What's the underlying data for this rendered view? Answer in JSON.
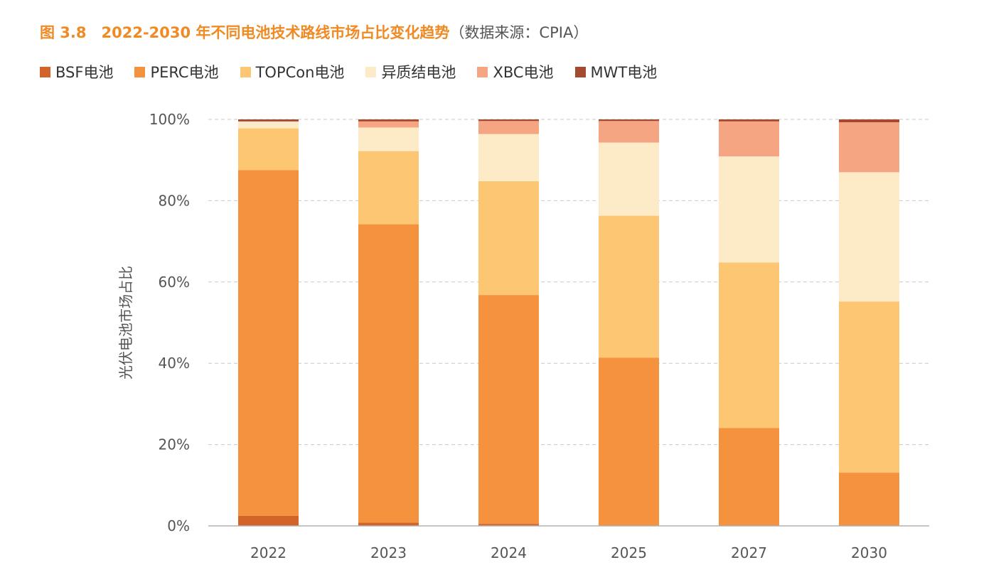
{
  "figure": {
    "title_main": "图 3.8　2022-2030 年不同电池技术路线市场占比变化趋势",
    "title_source": "（数据来源：CPIA）"
  },
  "chart_data": {
    "type": "bar",
    "stacked": true,
    "title": "图 3.8　2022-2030 年不同电池技术路线市场占比变化趋势（数据来源：CPIA）",
    "xlabel": "",
    "ylabel": "光伏电池市场占比",
    "ylim": [
      0,
      100
    ],
    "yticks": [
      "0%",
      "20%",
      "40%",
      "60%",
      "80%",
      "100%"
    ],
    "grid": true,
    "legend_position": "top",
    "categories": [
      "2022",
      "2023",
      "2024",
      "2025",
      "2027",
      "2030"
    ],
    "series": [
      {
        "name": "BSF电池",
        "color": "#d2642a",
        "values": [
          2.5,
          0.8,
          0.5,
          0.0,
          0.0,
          0.0
        ]
      },
      {
        "name": "PERC电池",
        "color": "#f5923e",
        "values": [
          85.0,
          73.4,
          56.3,
          41.4,
          24.1,
          13.1
        ]
      },
      {
        "name": "TOPCon电池",
        "color": "#fdc672",
        "values": [
          10.3,
          18.0,
          28.0,
          34.9,
          40.7,
          42.1
        ]
      },
      {
        "name": "异质结电池",
        "color": "#fdebc8",
        "values": [
          1.7,
          5.8,
          11.6,
          18.0,
          26.1,
          31.8
        ]
      },
      {
        "name": "XBC电池",
        "color": "#f6a583",
        "values": [
          0.0,
          1.5,
          3.2,
          5.3,
          8.6,
          12.3
        ]
      },
      {
        "name": "MWT电池",
        "color": "#a44a2f",
        "values": [
          0.5,
          0.5,
          0.4,
          0.4,
          0.5,
          0.7
        ]
      }
    ]
  }
}
